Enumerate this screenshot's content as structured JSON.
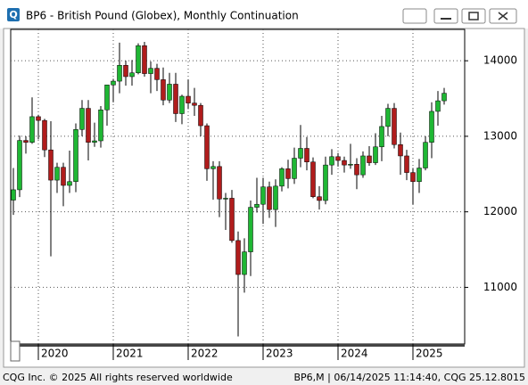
{
  "chart_data": {
    "type": "candlestick",
    "title": "BP6 - British Pound (Globex), Monthly Continuation",
    "categories": [
      null,
      null,
      null,
      null,
      "2020",
      null,
      null,
      null,
      null,
      null,
      null,
      null,
      null,
      null,
      null,
      null,
      "2021",
      null,
      null,
      null,
      null,
      null,
      null,
      null,
      null,
      null,
      null,
      null,
      "2022",
      null,
      null,
      null,
      null,
      null,
      null,
      null,
      null,
      null,
      null,
      null,
      "2023",
      null,
      null,
      null,
      null,
      null,
      null,
      null,
      null,
      null,
      null,
      null,
      "2024",
      null,
      null,
      null,
      null,
      null,
      null,
      null,
      null,
      null,
      null,
      null,
      "2025",
      null,
      null,
      null,
      null,
      null
    ],
    "open": [
      12155,
      12292,
      12945,
      12920,
      13260,
      13210,
      12820,
      12420,
      12590,
      12350,
      12400,
      13090,
      13370,
      12920,
      12940,
      13350,
      13680,
      13730,
      13940,
      13790,
      13840,
      14200,
      13830,
      13900,
      13750,
      13480,
      13690,
      13300,
      13530,
      13440,
      13410,
      13140,
      12570,
      12600,
      12170,
      12180,
      11620,
      11170,
      11470,
      12060,
      12100,
      12330,
      12030,
      12340,
      12570,
      12440,
      12710,
      12840,
      12660,
      12200,
      12150,
      12620,
      12730,
      12680,
      12620,
      12630,
      12490,
      12740,
      12650,
      12860,
      13130,
      13370,
      12890,
      12740,
      12520,
      12400,
      12580,
      12920,
      13330,
      13470
    ],
    "high": [
      12580,
      13010,
      13000,
      13515,
      13285,
      13230,
      13200,
      12650,
      12650,
      12810,
      13170,
      13480,
      13480,
      13180,
      13400,
      13680,
      13760,
      14240,
      14000,
      14010,
      14230,
      14250,
      13990,
      13960,
      13910,
      13840,
      13840,
      13550,
      13750,
      13640,
      13440,
      13170,
      12670,
      12670,
      12250,
      12290,
      11740,
      11650,
      12150,
      12450,
      12450,
      12400,
      12430,
      12590,
      12690,
      12850,
      13150,
      12990,
      12720,
      12340,
      12730,
      12830,
      12780,
      12730,
      12900,
      12710,
      12800,
      12870,
      13040,
      13270,
      13430,
      13440,
      13050,
      12820,
      12580,
      12700,
      13000,
      13450,
      13600,
      13640
    ],
    "low": [
      11960,
      12195,
      12770,
      12900,
      12960,
      12725,
      11410,
      12250,
      12075,
      12250,
      12260,
      13000,
      12680,
      12860,
      12850,
      13140,
      13450,
      13570,
      13670,
      13670,
      13820,
      13790,
      13570,
      13600,
      13410,
      13440,
      13190,
      13160,
      13360,
      13270,
      13000,
      12410,
      12160,
      11930,
      11760,
      11590,
      10350,
      10930,
      11150,
      11990,
      11840,
      11920,
      11800,
      12270,
      12310,
      12370,
      12590,
      12550,
      12180,
      12030,
      12100,
      12490,
      12600,
      12520,
      12570,
      12300,
      12450,
      12610,
      12620,
      12670,
      13000,
      12840,
      12490,
      12420,
      12100,
      12250,
      12550,
      12710,
      13140,
      13420
    ],
    "close": [
      12292,
      12945,
      12920,
      13260,
      13210,
      12820,
      12420,
      12590,
      12350,
      12400,
      13090,
      13370,
      12920,
      12940,
      13350,
      13680,
      13730,
      13940,
      13790,
      13840,
      14200,
      13830,
      13900,
      13750,
      13480,
      13690,
      13300,
      13530,
      13440,
      13410,
      13140,
      12570,
      12600,
      12170,
      12180,
      11620,
      11170,
      11470,
      12060,
      12100,
      12330,
      12030,
      12340,
      12570,
      12440,
      12710,
      12840,
      12660,
      12200,
      12150,
      12620,
      12730,
      12680,
      12620,
      12630,
      12490,
      12740,
      12650,
      12860,
      13130,
      13370,
      12890,
      12740,
      12520,
      12400,
      12580,
      12920,
      13330,
      13470,
      13570
    ],
    "up_color": "#1fb734",
    "down_color": "#b01c1c",
    "ylim": [
      10250,
      14415
    ],
    "yticks": [
      11000,
      12000,
      13000,
      14000
    ],
    "grid": true
  },
  "footer_left": "CQG Inc. © 2025 All rights reserved worldwide",
  "footer_right": "BP6,M | 06/14/2025 11:14:40, CQG 25.12.8015"
}
